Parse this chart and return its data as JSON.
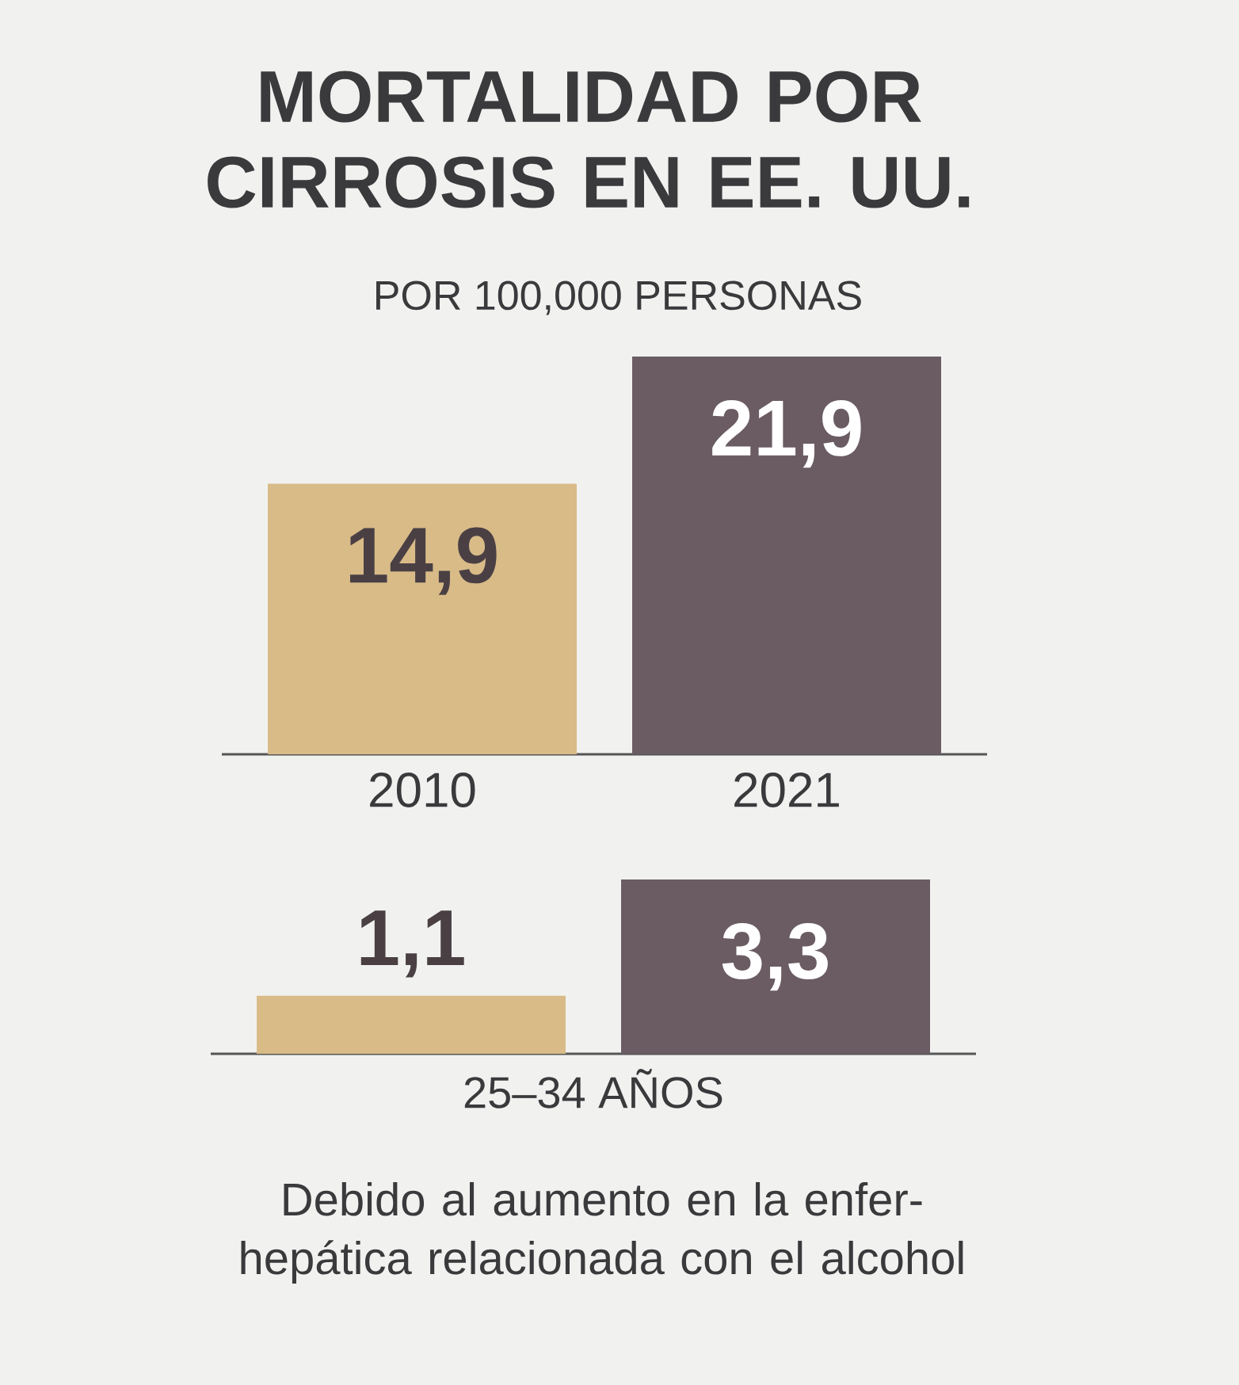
{
  "chart_data": [
    {
      "type": "bar",
      "title": "MORTALIDAD POR CIRROSIS EN EE. UU.",
      "subtitle": "POR 100,000 PERSONAS",
      "categories": [
        "2010",
        "2021"
      ],
      "values": [
        14.9,
        21.9
      ],
      "colors": [
        "#d9bb88",
        "#6b5c64"
      ],
      "value_labels": [
        "14,9",
        "21,9"
      ]
    },
    {
      "type": "bar",
      "xlabel": "25–34 AÑOS",
      "categories": [
        null,
        null
      ],
      "values": [
        1.1,
        3.3
      ],
      "colors": [
        "#d9bb88",
        "#6b5c64"
      ],
      "value_labels": [
        "1,1",
        "3,3"
      ],
      "annotations": [
        "Debido al aumento en la enfer- hepática relacionada con el alcohol"
      ]
    }
  ]
}
